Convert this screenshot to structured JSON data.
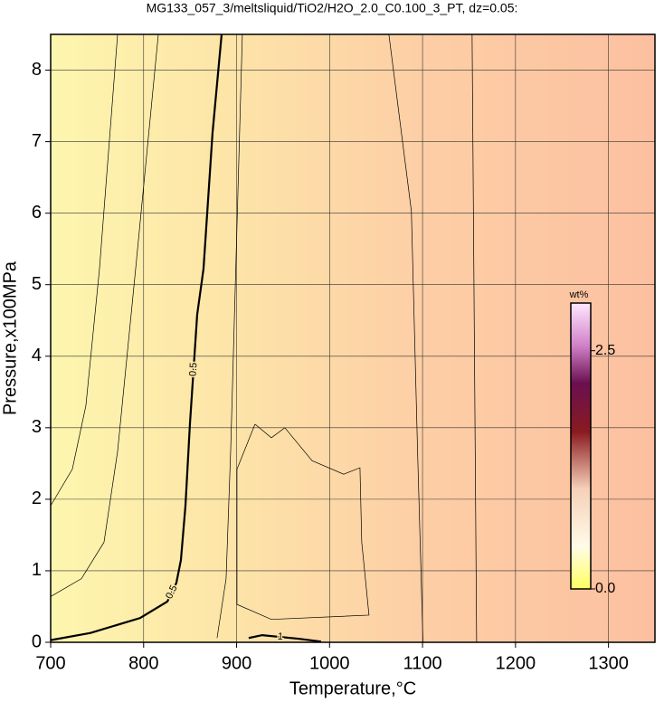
{
  "chart_data": {
    "type": "contour",
    "title": "MG133_057_3/meltsliquid/TiO2/H2O_2.0_C0.100_3_PT, dz=0.05:",
    "x_label": "Temperature,°C",
    "y_label": "Pressure,x100MPa",
    "xlim": [
      700,
      1350
    ],
    "ylim": [
      0,
      8.5
    ],
    "xticks": [
      700,
      800,
      900,
      1000,
      1100,
      1200,
      1300
    ],
    "yticks": [
      0,
      1,
      2,
      3,
      4,
      5,
      6,
      7,
      8
    ],
    "grid": true,
    "contours": [
      {
        "labels": [
          "0.5",
          "0.5"
        ],
        "color": "#000000",
        "bold": true,
        "x": [
          700,
          742.8,
          796.3,
          825.5,
          835.2,
          840.1,
          845,
          849.8,
          857.6,
          864.4,
          874.1,
          883.9
        ],
        "y": [
          0.03,
          0.13,
          0.34,
          0.57,
          0.83,
          1.15,
          1.91,
          3.05,
          4.58,
          5.22,
          7.12,
          8.5
        ]
      },
      {
        "labels": [
          "1"
        ],
        "color": "#000000",
        "bold": true,
        "x": [
          913,
          927.6,
          966.5,
          990.8
        ],
        "y": [
          0.06,
          0.1,
          0.05,
          0.01
        ]
      },
      {
        "labels": [],
        "color": "#000000",
        "bold": false,
        "x": [
          700,
          723.3,
          737.9,
          752.5,
          772
        ],
        "y": [
          1.91,
          2.42,
          3.31,
          5.22,
          8.5
        ]
      },
      {
        "labels": [],
        "color": "#000000",
        "bold": false,
        "x": [
          700,
          733.1,
          757.4,
          772,
          791.4,
          815.8
        ],
        "y": [
          0.64,
          0.89,
          1.4,
          2.67,
          5.22,
          8.5
        ]
      },
      {
        "labels": [],
        "color": "#000000",
        "bold": false,
        "x": [
          879,
          888.7,
          893.6,
          906.2
        ],
        "y": [
          0.06,
          0.89,
          2.67,
          8.5
        ]
      },
      {
        "labels": [],
        "color": "#000000",
        "bold": false,
        "x": [
          1063.8,
          1088,
          1094.6,
          1100.5
        ],
        "y": [
          8.5,
          6.03,
          2.7,
          0
        ]
      },
      {
        "labels": [],
        "color": "#000000",
        "bold": false,
        "x": [
          1153.3,
          1158.2
        ],
        "y": [
          8.5,
          0
        ]
      },
      {
        "labels": [],
        "color": "#000000",
        "bold": false,
        "x": [
          919.8,
          937.4,
          951.9,
          981.1,
          1015.2,
          1032.7,
          1034.6,
          1042.4,
          937.4,
          900.4,
          900.4,
          919.8
        ],
        "y": [
          3.05,
          2.86,
          3.0,
          2.54,
          2.35,
          2.44,
          1.4,
          0.38,
          0.32,
          0.53,
          2.42,
          3.05
        ]
      }
    ],
    "colorbar": {
      "label": "wt%",
      "lim": [
        0,
        3
      ],
      "ticks": [
        {
          "value": 0,
          "label": "0.0"
        },
        2.5
      ]
    }
  }
}
